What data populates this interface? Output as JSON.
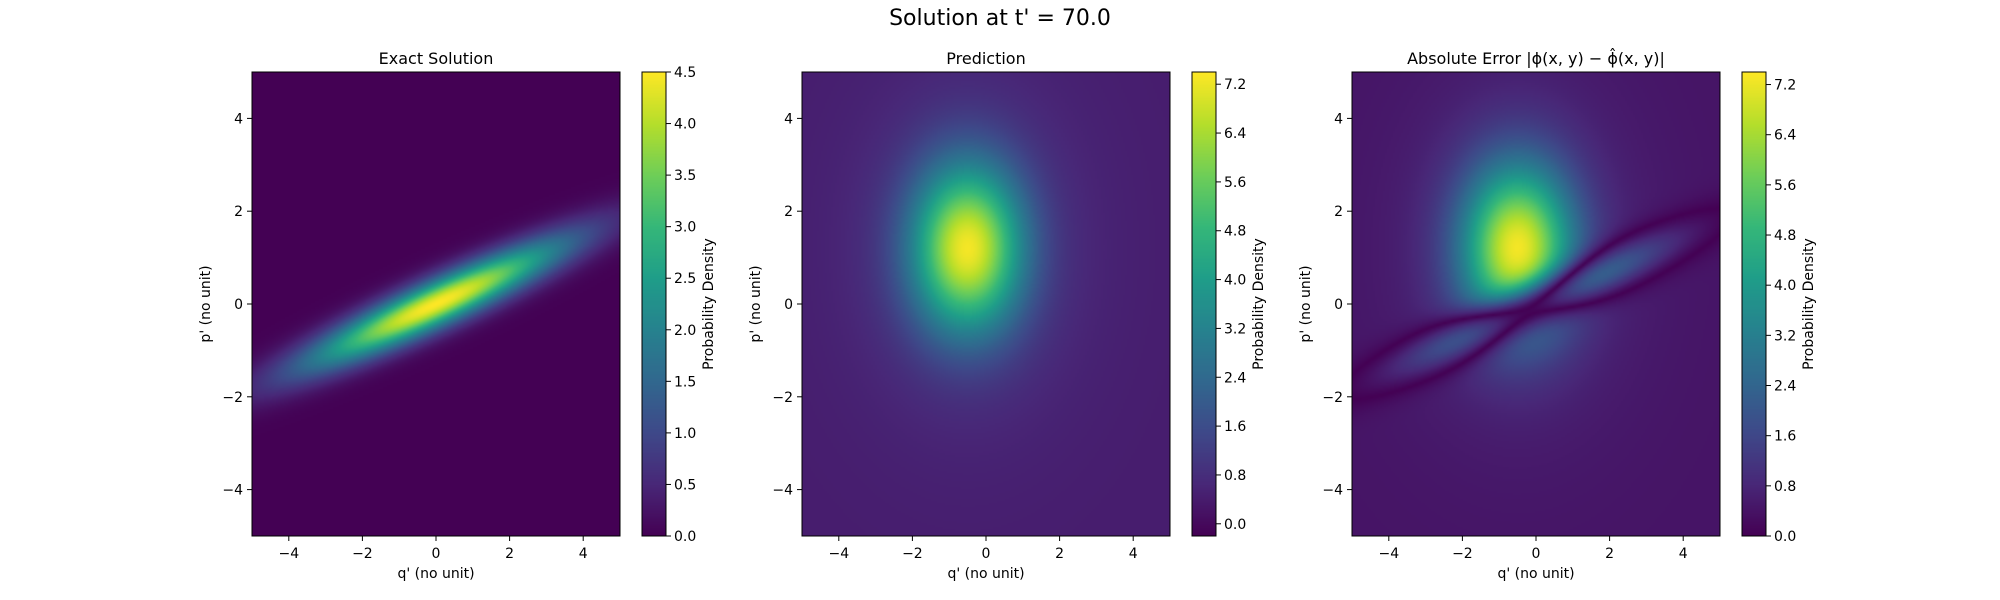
{
  "figure": {
    "title": "Solution at t' = 70.0"
  },
  "colors": {
    "viridis": [
      "#440154",
      "#482878",
      "#3e4989",
      "#31688e",
      "#26828e",
      "#1f9e89",
      "#35b779",
      "#6ece58",
      "#b5de2b",
      "#fde725"
    ]
  },
  "chart_data": [
    {
      "type": "heatmap",
      "title": "Exact Solution",
      "xlabel": "q' (no unit)",
      "ylabel": "p' (no unit)",
      "xlim": [
        -5,
        5
      ],
      "ylim": [
        -5,
        5
      ],
      "xticks": [
        -4,
        -2,
        0,
        2,
        4
      ],
      "yticks": [
        -4,
        -2,
        0,
        2,
        4
      ],
      "grid": false,
      "colorbar": {
        "label": "Probability Density",
        "min": 0.0,
        "max": 4.5,
        "ticks": [
          "0.0",
          "0.5",
          "1.0",
          "1.5",
          "2.0",
          "2.5",
          "3.0",
          "3.5",
          "4.0",
          "4.5"
        ]
      },
      "field": {
        "shape": "tilted gaussian ridge",
        "center": [
          0.0,
          0.0
        ],
        "peak": 4.5,
        "angle_deg": 20,
        "sigma_major": 2.6,
        "sigma_minor": 0.35
      }
    },
    {
      "type": "heatmap",
      "title": "Prediction",
      "xlabel": "q' (no unit)",
      "ylabel": "p' (no unit)",
      "xlim": [
        -5,
        5
      ],
      "ylim": [
        -5,
        5
      ],
      "xticks": [
        -4,
        -2,
        0,
        2,
        4
      ],
      "yticks": [
        -4,
        -2,
        0,
        2,
        4
      ],
      "grid": false,
      "colorbar": {
        "label": "Probability Density",
        "min": -0.2,
        "max": 7.4,
        "ticks": [
          "0.0",
          "0.8",
          "1.6",
          "2.4",
          "3.2",
          "4.0",
          "4.8",
          "5.6",
          "6.4",
          "7.2"
        ]
      },
      "field": {
        "shape": "gaussian blob",
        "center": [
          -0.5,
          1.2
        ],
        "peak": 7.3,
        "sigma_x": 1.05,
        "sigma_y": 1.25,
        "baseline": 0.4
      }
    },
    {
      "type": "heatmap",
      "title": "Absolute Error |ϕ(x, y) − ϕ̂(x, y)|",
      "xlabel": "q' (no unit)",
      "ylabel": "p' (no unit)",
      "xlim": [
        -5,
        5
      ],
      "ylim": [
        -5,
        5
      ],
      "xticks": [
        -4,
        -2,
        0,
        2,
        4
      ],
      "yticks": [
        -4,
        -2,
        0,
        2,
        4
      ],
      "grid": false,
      "colorbar": {
        "label": "Probability Density",
        "min": 0.0,
        "max": 7.4,
        "ticks": [
          "0.0",
          "0.8",
          "1.6",
          "2.4",
          "3.2",
          "4.0",
          "4.8",
          "5.6",
          "6.4",
          "7.2"
        ]
      },
      "field": {
        "shape": "absolute difference of exact and prediction"
      }
    }
  ]
}
